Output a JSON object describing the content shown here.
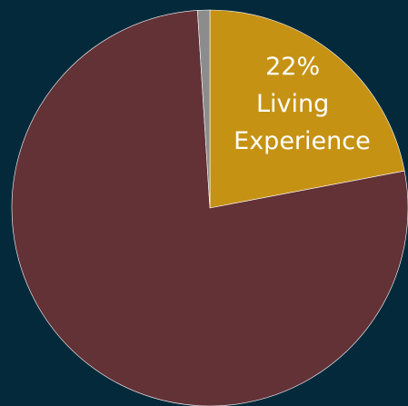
{
  "chart_data": {
    "type": "pie",
    "categories": [
      "Living Experience",
      null,
      null
    ],
    "values": [
      22,
      77,
      1
    ],
    "value_labels": [
      "22%",
      null,
      null
    ],
    "colors": [
      "#c69214",
      "#633236",
      "#8c8c8c"
    ]
  }
}
